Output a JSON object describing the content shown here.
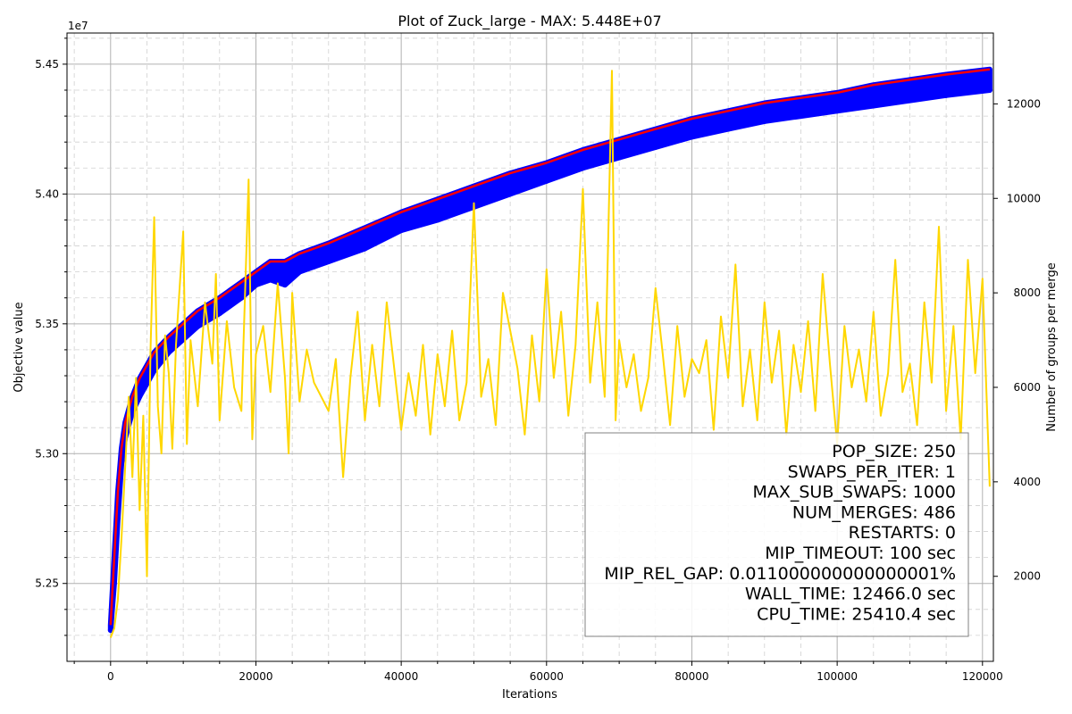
{
  "chart_data": {
    "type": "line",
    "title": "Plot of Zuck_large - MAX: 5.448E+07",
    "xlabel": "Iterations",
    "ylabel": "Objective value",
    "y2label": "Number of groups per merge",
    "y_offset_label": "1e7",
    "xlim": [
      -6000,
      121500
    ],
    "ylim": [
      52200000,
      54620000
    ],
    "y2lim": [
      200,
      13500
    ],
    "x_ticks": [
      0,
      20000,
      40000,
      60000,
      80000,
      100000,
      120000
    ],
    "x_tick_labels": [
      "0",
      "20000",
      "40000",
      "60000",
      "80000",
      "100000",
      "120000"
    ],
    "y_ticks": [
      52500000,
      53000000,
      53500000,
      54000000,
      54500000
    ],
    "y_tick_labels": [
      "5.25",
      "5.30",
      "5.35",
      "5.40",
      "5.45"
    ],
    "y2_ticks": [
      2000,
      4000,
      6000,
      8000,
      10000,
      12000
    ],
    "y2_tick_labels": [
      "2000",
      "4000",
      "6000",
      "8000",
      "10000",
      "12000"
    ],
    "grid": true,
    "series": [
      {
        "role": "population-band",
        "color": "#0000ff",
        "x": [
          0,
          500,
          1000,
          1500,
          2000,
          3000,
          4000,
          5000,
          6000,
          8000,
          10000,
          12000,
          15000,
          18000,
          20000,
          22000,
          24000,
          26000,
          28000,
          30000,
          35000,
          40000,
          45000,
          50000,
          55000,
          60000,
          65000,
          70000,
          75000,
          80000,
          85000,
          90000,
          95000,
          100000,
          105000,
          110000,
          115000,
          121000
        ],
        "upper": [
          52340000,
          52600000,
          52850000,
          53020000,
          53120000,
          53220000,
          53290000,
          53340000,
          53390000,
          53450000,
          53500000,
          53550000,
          53600000,
          53660000,
          53700000,
          53740000,
          53740000,
          53770000,
          53790000,
          53810000,
          53870000,
          53930000,
          53980000,
          54030000,
          54080000,
          54120000,
          54170000,
          54210000,
          54250000,
          54290000,
          54320000,
          54350000,
          54370000,
          54390000,
          54420000,
          54440000,
          54460000,
          54480000
        ],
        "lower": [
          52320000,
          52500000,
          52750000,
          52960000,
          53060000,
          53160000,
          53220000,
          53270000,
          53320000,
          53390000,
          53440000,
          53490000,
          53540000,
          53600000,
          53650000,
          53670000,
          53650000,
          53700000,
          53720000,
          53740000,
          53790000,
          53860000,
          53900000,
          53950000,
          54000000,
          54050000,
          54100000,
          54140000,
          54180000,
          54220000,
          54250000,
          54280000,
          54300000,
          54320000,
          54340000,
          54360000,
          54380000,
          54400000
        ]
      },
      {
        "role": "best-value",
        "color": "#ff0000",
        "axis": "left",
        "x": [
          0,
          500,
          1000,
          1500,
          2000,
          3000,
          4000,
          5000,
          6000,
          8000,
          10000,
          12000,
          15000,
          18000,
          20000,
          22000,
          24000,
          26000,
          28000,
          30000,
          35000,
          40000,
          45000,
          50000,
          55000,
          60000,
          65000,
          70000,
          75000,
          80000,
          85000,
          90000,
          95000,
          100000,
          105000,
          110000,
          115000,
          121000
        ],
        "y": [
          52340000,
          52600000,
          52850000,
          53020000,
          53120000,
          53220000,
          53290000,
          53340000,
          53390000,
          53450000,
          53500000,
          53550000,
          53600000,
          53660000,
          53700000,
          53740000,
          53740000,
          53770000,
          53790000,
          53810000,
          53870000,
          53930000,
          53980000,
          54030000,
          54080000,
          54120000,
          54170000,
          54210000,
          54250000,
          54290000,
          54320000,
          54350000,
          54370000,
          54390000,
          54420000,
          54440000,
          54460000,
          54480000
        ]
      },
      {
        "role": "groups-per-merge",
        "color": "#ffd700",
        "axis": "right",
        "x": [
          0,
          500,
          1000,
          1500,
          2000,
          2500,
          3000,
          3500,
          4000,
          4500,
          5000,
          5500,
          6000,
          6500,
          7000,
          7500,
          8000,
          8500,
          9000,
          10000,
          10500,
          11000,
          12000,
          13000,
          14000,
          14500,
          15000,
          16000,
          17000,
          18000,
          19000,
          19500,
          20000,
          21000,
          22000,
          23000,
          24000,
          24500,
          25000,
          26000,
          27000,
          28000,
          30000,
          31000,
          32000,
          33000,
          34000,
          35000,
          36000,
          37000,
          38000,
          40000,
          41000,
          42000,
          43000,
          44000,
          45000,
          46000,
          47000,
          48000,
          49000,
          50000,
          51000,
          52000,
          53000,
          54000,
          56000,
          57000,
          58000,
          59000,
          60000,
          61000,
          62000,
          63000,
          64000,
          65000,
          66000,
          67000,
          68000,
          69000,
          69500,
          70000,
          71000,
          72000,
          73000,
          74000,
          75000,
          76000,
          77000,
          78000,
          79000,
          80000,
          81000,
          82000,
          83000,
          84000,
          85000,
          86000,
          87000,
          88000,
          89000,
          90000,
          91000,
          92000,
          93000,
          94000,
          95000,
          96000,
          97000,
          98000,
          99000,
          100000,
          101000,
          102000,
          103000,
          104000,
          105000,
          106000,
          107000,
          108000,
          109000,
          110000,
          111000,
          112000,
          113000,
          114000,
          115000,
          116000,
          117000,
          118000,
          119000,
          120000,
          121000
        ],
        "y": [
          700,
          900,
          1500,
          2800,
          4300,
          5800,
          4100,
          6200,
          3400,
          5400,
          2000,
          6800,
          9600,
          5600,
          4600,
          7100,
          6300,
          4700,
          6900,
          9300,
          4800,
          7000,
          5600,
          7800,
          6500,
          8400,
          5300,
          7400,
          6000,
          5500,
          10400,
          4900,
          6700,
          7300,
          5900,
          8200,
          6200,
          4600,
          8000,
          5700,
          6800,
          6100,
          5500,
          6600,
          4100,
          6200,
          7600,
          5300,
          6900,
          5600,
          7800,
          5100,
          6300,
          5400,
          6900,
          5000,
          6700,
          5600,
          7200,
          5300,
          6100,
          9900,
          5800,
          6600,
          5200,
          8000,
          6400,
          5000,
          7100,
          5700,
          8500,
          6200,
          7600,
          5400,
          6900,
          10200,
          6100,
          7800,
          5800,
          12700,
          5300,
          7000,
          6000,
          6700,
          5500,
          6200,
          8100,
          6700,
          5200,
          7300,
          5800,
          6600,
          6300,
          7000,
          5100,
          7500,
          6200,
          8600,
          5600,
          6800,
          5300,
          7800,
          6100,
          7200,
          5000,
          6900,
          5900,
          7400,
          5500,
          8400,
          6500,
          4800,
          7300,
          6000,
          6800,
          5700,
          7600,
          5400,
          6300,
          8700,
          5900,
          6500,
          5200,
          7800,
          6100,
          9400,
          5500,
          7300,
          4900,
          8700,
          6300,
          8300,
          3900
        ]
      }
    ],
    "annotation": {
      "lines": [
        "POP_SIZE: 250",
        "SWAPS_PER_ITER: 1",
        "MAX_SUB_SWAPS: 1000",
        "NUM_MERGES: 486",
        "RESTARTS: 0",
        "MIP_TIMEOUT: 100 sec",
        "MIP_REL_GAP: 0.011000000000000001%",
        "WALL_TIME: 12466.0 sec",
        "CPU_TIME: 25410.4 sec"
      ],
      "position": "bottom-right"
    }
  }
}
